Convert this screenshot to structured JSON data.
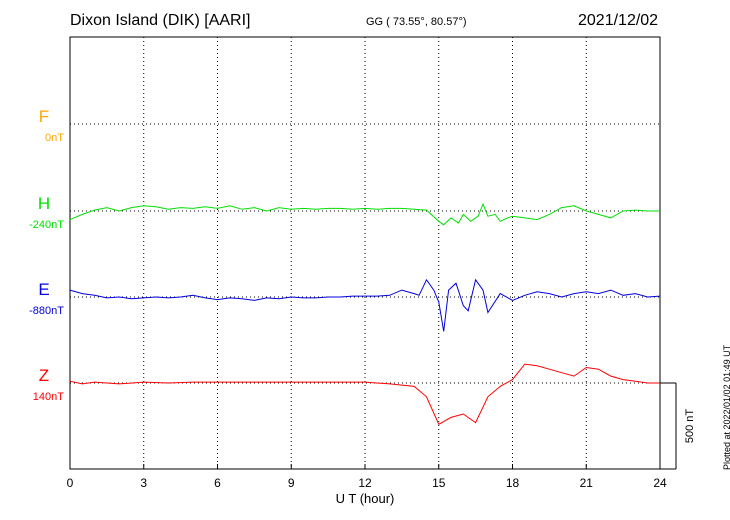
{
  "header": {
    "title": "Dixon Island (DIK)  [AARI]",
    "coords": "GG ( 73.55°,  80.57°)",
    "date": "2021/12/02"
  },
  "plotted_note": "Plotted at 2022/01/02 01:49 UT",
  "chart_data": {
    "type": "line",
    "xlabel": "U T (hour)",
    "x_ticks": [
      0,
      3,
      6,
      9,
      12,
      15,
      18,
      21,
      24
    ],
    "xlim": [
      0,
      24
    ],
    "grid": true,
    "scale_bar": {
      "label": "500 nT",
      "nT": 500
    },
    "series": [
      {
        "name": "F",
        "offset_label": "0nT",
        "color": "#FFA500",
        "points": []
      },
      {
        "name": "H",
        "offset_label": "-240nT",
        "color": "#00E000",
        "points": [
          [
            0,
            -50
          ],
          [
            0.5,
            -20
          ],
          [
            1,
            5
          ],
          [
            1.5,
            20
          ],
          [
            2,
            0
          ],
          [
            2.5,
            20
          ],
          [
            3,
            30
          ],
          [
            3.5,
            25
          ],
          [
            4,
            10
          ],
          [
            4.5,
            20
          ],
          [
            5,
            15
          ],
          [
            5.5,
            25
          ],
          [
            6,
            15
          ],
          [
            6.5,
            30
          ],
          [
            7,
            10
          ],
          [
            7.5,
            20
          ],
          [
            8,
            0
          ],
          [
            8.5,
            20
          ],
          [
            9,
            10
          ],
          [
            9.5,
            15
          ],
          [
            10,
            10
          ],
          [
            10.5,
            15
          ],
          [
            11,
            15
          ],
          [
            11.5,
            10
          ],
          [
            12,
            15
          ],
          [
            12.5,
            10
          ],
          [
            13,
            15
          ],
          [
            13.5,
            15
          ],
          [
            14,
            10
          ],
          [
            14.5,
            5
          ],
          [
            15,
            -60
          ],
          [
            15.2,
            -80
          ],
          [
            15.5,
            -40
          ],
          [
            15.8,
            -70
          ],
          [
            16,
            -20
          ],
          [
            16.3,
            -60
          ],
          [
            16.6,
            -30
          ],
          [
            16.8,
            40
          ],
          [
            17,
            -30
          ],
          [
            17.3,
            -20
          ],
          [
            17.5,
            -60
          ],
          [
            17.8,
            -40
          ],
          [
            18,
            -30
          ],
          [
            18.5,
            -40
          ],
          [
            19,
            -50
          ],
          [
            19.5,
            -20
          ],
          [
            20,
            20
          ],
          [
            20.5,
            30
          ],
          [
            21,
            0
          ],
          [
            21.5,
            -20
          ],
          [
            22,
            -40
          ],
          [
            22.5,
            0
          ],
          [
            23,
            5
          ],
          [
            23.5,
            0
          ],
          [
            24,
            0
          ]
        ]
      },
      {
        "name": "E",
        "offset_label": "-880nT",
        "color": "#0000E0",
        "points": [
          [
            0,
            40
          ],
          [
            0.5,
            20
          ],
          [
            1,
            10
          ],
          [
            1.5,
            -5
          ],
          [
            2,
            0
          ],
          [
            2.5,
            -10
          ],
          [
            3,
            -5
          ],
          [
            3.5,
            0
          ],
          [
            4,
            -5
          ],
          [
            4.5,
            0
          ],
          [
            5,
            10
          ],
          [
            5.5,
            -5
          ],
          [
            6,
            -15
          ],
          [
            6.5,
            -5
          ],
          [
            7,
            -10
          ],
          [
            7.5,
            -20
          ],
          [
            8,
            -5
          ],
          [
            8.5,
            -10
          ],
          [
            9,
            0
          ],
          [
            9.5,
            -5
          ],
          [
            10,
            -5
          ],
          [
            10.5,
            0
          ],
          [
            11,
            0
          ],
          [
            11.5,
            5
          ],
          [
            12,
            5
          ],
          [
            12.5,
            5
          ],
          [
            13,
            10
          ],
          [
            13.5,
            40
          ],
          [
            14,
            20
          ],
          [
            14.2,
            10
          ],
          [
            14.5,
            100
          ],
          [
            14.8,
            40
          ],
          [
            15,
            -30
          ],
          [
            15.2,
            -200
          ],
          [
            15.4,
            40
          ],
          [
            15.7,
            80
          ],
          [
            16,
            -50
          ],
          [
            16.2,
            -80
          ],
          [
            16.5,
            100
          ],
          [
            16.8,
            40
          ],
          [
            17,
            -90
          ],
          [
            17.5,
            20
          ],
          [
            18,
            -20
          ],
          [
            18.5,
            10
          ],
          [
            19,
            30
          ],
          [
            19.5,
            20
          ],
          [
            20,
            0
          ],
          [
            20.5,
            20
          ],
          [
            21,
            30
          ],
          [
            21.5,
            20
          ],
          [
            22,
            40
          ],
          [
            22.5,
            10
          ],
          [
            23,
            20
          ],
          [
            23.5,
            0
          ],
          [
            24,
            5
          ]
        ]
      },
      {
        "name": "Z",
        "offset_label": "140nT",
        "color": "#FF0000",
        "points": [
          [
            0,
            10
          ],
          [
            0.5,
            -5
          ],
          [
            1,
            5
          ],
          [
            2,
            -5
          ],
          [
            3,
            5
          ],
          [
            4,
            0
          ],
          [
            5,
            5
          ],
          [
            6,
            5
          ],
          [
            7,
            5
          ],
          [
            8,
            5
          ],
          [
            9,
            5
          ],
          [
            10,
            5
          ],
          [
            11,
            5
          ],
          [
            12,
            5
          ],
          [
            13,
            -5
          ],
          [
            14,
            -20
          ],
          [
            14.5,
            -80
          ],
          [
            15,
            -240
          ],
          [
            15.5,
            -200
          ],
          [
            16,
            -180
          ],
          [
            16.5,
            -230
          ],
          [
            17,
            -80
          ],
          [
            17.5,
            -20
          ],
          [
            18,
            20
          ],
          [
            18.5,
            110
          ],
          [
            19,
            100
          ],
          [
            19.5,
            80
          ],
          [
            20,
            60
          ],
          [
            20.5,
            40
          ],
          [
            21,
            90
          ],
          [
            21.5,
            80
          ],
          [
            22,
            40
          ],
          [
            22.5,
            20
          ],
          [
            23,
            10
          ],
          [
            23.5,
            0
          ],
          [
            24,
            0
          ]
        ]
      }
    ]
  }
}
